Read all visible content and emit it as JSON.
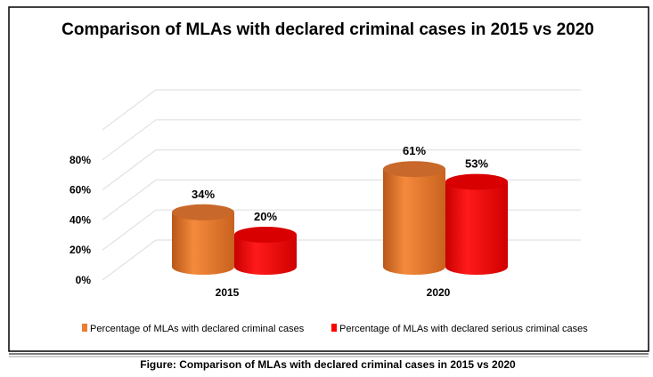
{
  "chart_data": {
    "type": "bar",
    "style": "3d-cylinder",
    "title": "Comparison of MLAs with declared criminal cases in 2015 vs 2020",
    "categories": [
      "2015",
      "2020"
    ],
    "series": [
      {
        "name": "Percentage of MLAs with declared criminal  cases",
        "values": [
          34,
          61
        ],
        "labels": [
          "34%",
          "61%"
        ],
        "color": "#ED7D31"
      },
      {
        "name": "Percentage of MLAs with declared serious criminal cases",
        "values": [
          20,
          53
        ],
        "labels": [
          "20%",
          "53%"
        ],
        "color": "#FF0000"
      }
    ],
    "yticks": [
      "0%",
      "20%",
      "40%",
      "60%",
      "80%"
    ],
    "ylim": [
      0,
      80
    ],
    "grid": true,
    "legend": "bottom"
  },
  "caption": "Figure: Comparison of MLAs with declared criminal cases in 2015 vs 2020"
}
